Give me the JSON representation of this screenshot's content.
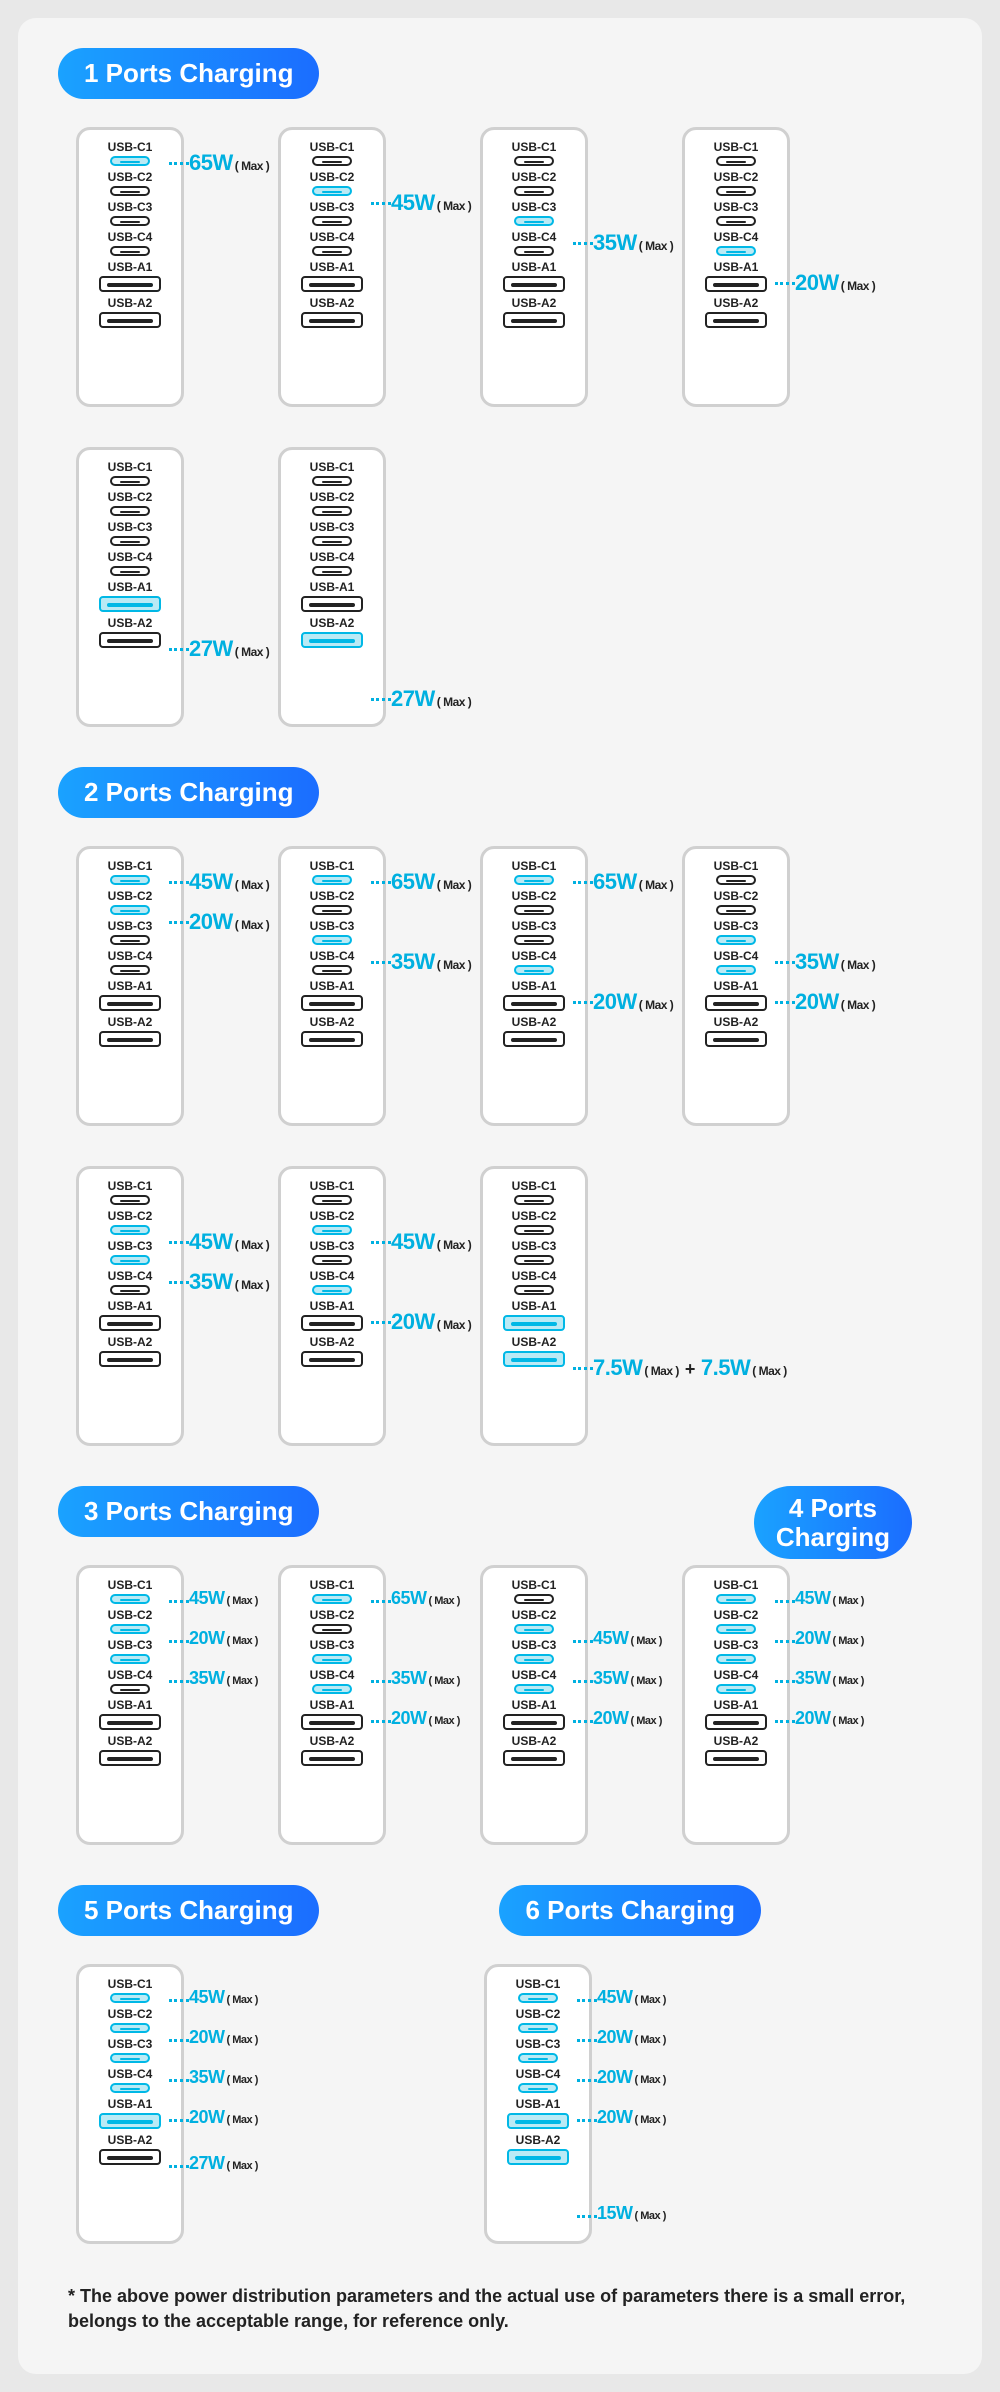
{
  "colors": {
    "gradient_start": "#1aa2ff",
    "gradient_end": "#1b6dff",
    "active_border": "#00b8e6",
    "active_fill": "#baeaf5",
    "watt_color": "#00b0e0",
    "page_bg": "#f5f5f5",
    "outer_bg": "#e8e8e8",
    "charger_border": "#d0d0d0"
  },
  "port_labels": [
    "USB-C1",
    "USB-C2",
    "USB-C3",
    "USB-C4",
    "USB-A1",
    "USB-A2"
  ],
  "port_sizes": [
    "small",
    "small",
    "small",
    "small",
    "big",
    "big"
  ],
  "max_suffix": "( Max )",
  "disclaimer": "* The above power distribution parameters and the actual use of parameters there is a small error, belongs to the acceptable range, for reference only.",
  "sections": [
    {
      "title": "1 Ports Charging",
      "groups": [
        [
          {
            "active": [
              0
            ],
            "labels": [
              {
                "port": 0,
                "text": "65W"
              }
            ]
          },
          {
            "active": [
              1
            ],
            "labels": [
              {
                "port": 1,
                "text": "45W"
              }
            ]
          },
          {
            "active": [
              2
            ],
            "labels": [
              {
                "port": 2,
                "text": "35W"
              }
            ]
          },
          {
            "active": [
              3
            ],
            "labels": [
              {
                "port": 3,
                "text": "20W"
              }
            ]
          }
        ],
        [
          {
            "active": [
              4
            ],
            "labels": [
              {
                "port": 4,
                "text": "27W"
              }
            ]
          },
          {
            "active": [
              5
            ],
            "labels": [
              {
                "port": 5,
                "text": "27W"
              }
            ]
          }
        ]
      ]
    },
    {
      "title": "2 Ports Charging",
      "groups": [
        [
          {
            "active": [
              0,
              1
            ],
            "labels": [
              {
                "port": 0,
                "text": "45W"
              },
              {
                "port": 1,
                "text": "20W"
              }
            ]
          },
          {
            "active": [
              0,
              2
            ],
            "labels": [
              {
                "port": 0,
                "text": "65W"
              },
              {
                "port": 2,
                "text": "35W"
              }
            ]
          },
          {
            "active": [
              0,
              3
            ],
            "labels": [
              {
                "port": 0,
                "text": "65W"
              },
              {
                "port": 3,
                "text": "20W"
              }
            ]
          },
          {
            "active": [
              2,
              3
            ],
            "labels": [
              {
                "port": 2,
                "text": "35W"
              },
              {
                "port": 3,
                "text": "20W"
              }
            ]
          }
        ],
        [
          {
            "active": [
              1,
              2
            ],
            "labels": [
              {
                "port": 1,
                "text": "45W"
              },
              {
                "port": 2,
                "text": "35W"
              }
            ]
          },
          {
            "active": [
              1,
              3
            ],
            "labels": [
              {
                "port": 1,
                "text": "45W"
              },
              {
                "port": 3,
                "text": "20W"
              }
            ]
          },
          {
            "active": [
              4,
              5
            ],
            "labels": [
              {
                "port": 4,
                "text": "7.5W",
                "extra": "+ 7.5W"
              }
            ]
          }
        ]
      ]
    },
    {
      "title_left": "3 Ports Charging",
      "title_right_two_line": [
        "4 Ports",
        "Charging"
      ],
      "groups": [
        [
          {
            "active": [
              0,
              1,
              2
            ],
            "labels": [
              {
                "port": 0,
                "text": "45W"
              },
              {
                "port": 1,
                "text": "20W"
              },
              {
                "port": 2,
                "text": "35W"
              }
            ]
          },
          {
            "active": [
              0,
              2,
              3
            ],
            "labels": [
              {
                "port": 0,
                "text": "65W"
              },
              {
                "port": 2,
                "text": "35W"
              },
              {
                "port": 3,
                "text": "20W"
              }
            ]
          },
          {
            "active": [
              1,
              2,
              3
            ],
            "labels": [
              {
                "port": 1,
                "text": "45W"
              },
              {
                "port": 2,
                "text": "35W"
              },
              {
                "port": 3,
                "text": "20W"
              }
            ]
          },
          {
            "active": [
              0,
              1,
              2,
              3
            ],
            "labels": [
              {
                "port": 0,
                "text": "45W"
              },
              {
                "port": 1,
                "text": "20W"
              },
              {
                "port": 2,
                "text": "35W"
              },
              {
                "port": 3,
                "text": "20W"
              }
            ]
          }
        ]
      ]
    },
    {
      "title_left": "5 Ports Charging",
      "title_right": "6 Ports Charging",
      "groups": [
        [
          {
            "active": [
              0,
              1,
              2,
              3,
              4
            ],
            "labels": [
              {
                "port": 0,
                "text": "45W"
              },
              {
                "port": 1,
                "text": "20W"
              },
              {
                "port": 2,
                "text": "35W"
              },
              {
                "port": 3,
                "text": "20W"
              },
              {
                "port": 4,
                "text": "27W"
              }
            ]
          },
          {
            "active": [
              0,
              1,
              2,
              3,
              4,
              5
            ],
            "labels": [
              {
                "port": 0,
                "text": "45W"
              },
              {
                "port": 1,
                "text": "20W"
              },
              {
                "port": 2,
                "text": "20W"
              },
              {
                "port": 3,
                "text": "20W"
              },
              {
                "port": 5,
                "text": "15W"
              }
            ],
            "col": 2
          }
        ]
      ]
    }
  ]
}
